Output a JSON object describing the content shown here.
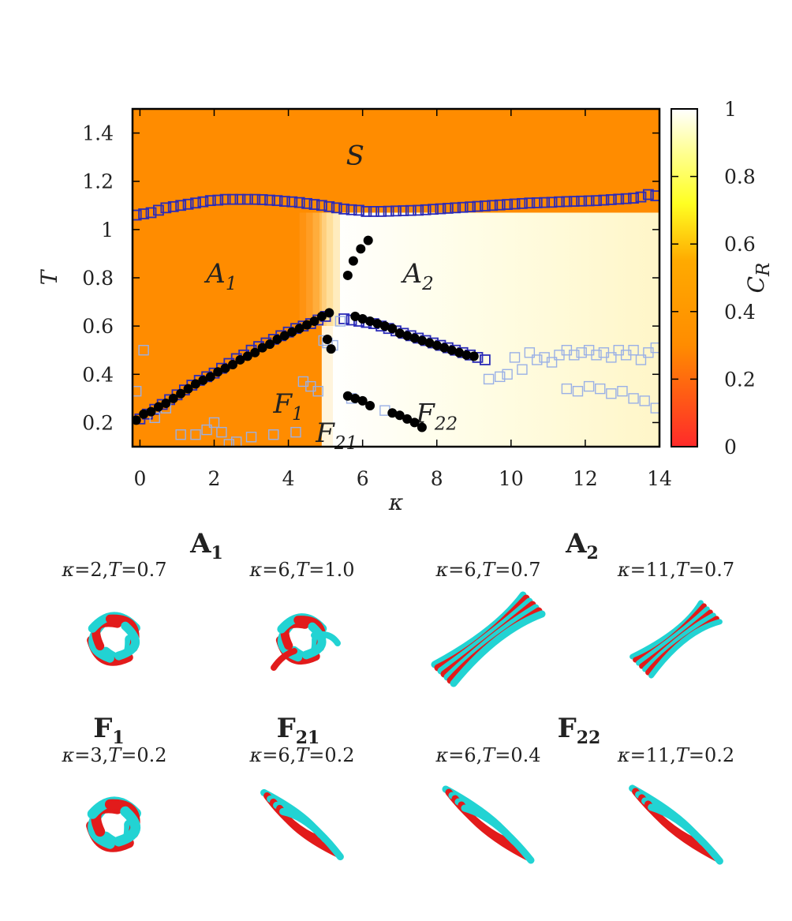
{
  "chart_data": {
    "type": "heatmap",
    "xlabel": "κ",
    "ylabel": "T",
    "xlim": [
      -0.2,
      14
    ],
    "ylim": [
      0.1,
      1.5
    ],
    "x_ticks": [
      "0",
      "2",
      "4",
      "6",
      "8",
      "10",
      "12",
      "14"
    ],
    "y_ticks": [
      "0.2",
      "0.4",
      "0.6",
      "0.8",
      "1",
      "1.2",
      "1.4"
    ],
    "colorbar": {
      "label": "C",
      "label_sub": "R",
      "range": [
        0,
        1
      ],
      "ticks": [
        "0",
        "0.2",
        "0.4",
        "0.6",
        "0.8",
        "1"
      ],
      "colors": [
        "#ff2a2a",
        "#ff8c00",
        "#ffff22",
        "#ffffff"
      ]
    },
    "regions": [
      {
        "label": "S",
        "sub": "",
        "kappa": 5.8,
        "T": 1.27
      },
      {
        "label": "A",
        "sub": "1",
        "kappa": 2.2,
        "T": 0.78
      },
      {
        "label": "A",
        "sub": "2",
        "kappa": 7.5,
        "T": 0.78
      },
      {
        "label": "F",
        "sub": "1",
        "kappa": 4.0,
        "T": 0.24
      },
      {
        "label": "F",
        "sub": "21",
        "kappa": 5.3,
        "T": 0.12
      },
      {
        "label": "F",
        "sub": "22",
        "kappa": 8.0,
        "T": 0.2
      }
    ],
    "series": [
      {
        "marker": "blue-square-outline",
        "x": [
          -0.1,
          0.1,
          0.3,
          0.5,
          0.7,
          0.9,
          1.1,
          1.3,
          1.5,
          1.7,
          1.9,
          2.1,
          2.3,
          2.5,
          2.7,
          2.9,
          3.1,
          3.3,
          3.5,
          3.7,
          3.9,
          4.1,
          4.3,
          4.5,
          4.7,
          4.9,
          5.1,
          5.3,
          5.5,
          5.7,
          5.9,
          6.1,
          6.3,
          6.5,
          6.7,
          6.9,
          7.1,
          7.3,
          7.5,
          7.7,
          7.9,
          8.1,
          8.3,
          8.5,
          8.7,
          8.9,
          9.1,
          9.3,
          9.5,
          9.7,
          9.9,
          10.1,
          10.3,
          10.5,
          10.7,
          10.9,
          11.1,
          11.3,
          11.5,
          11.7,
          11.9,
          12.1,
          12.3,
          12.5,
          12.7,
          12.9,
          13.1,
          13.3,
          13.5,
          13.7,
          13.9
        ],
        "y": [
          1.06,
          1.065,
          1.07,
          1.08,
          1.09,
          1.095,
          1.1,
          1.105,
          1.11,
          1.115,
          1.12,
          1.122,
          1.125,
          1.125,
          1.125,
          1.125,
          1.125,
          1.124,
          1.122,
          1.12,
          1.117,
          1.115,
          1.112,
          1.108,
          1.104,
          1.1,
          1.095,
          1.09,
          1.085,
          1.082,
          1.08,
          1.075,
          1.075,
          1.075,
          1.076,
          1.077,
          1.078,
          1.079,
          1.08,
          1.082,
          1.084,
          1.086,
          1.088,
          1.09,
          1.092,
          1.094,
          1.096,
          1.098,
          1.1,
          1.102,
          1.104,
          1.106,
          1.108,
          1.11,
          1.111,
          1.112,
          1.113,
          1.115,
          1.116,
          1.117,
          1.118,
          1.119,
          1.12,
          1.122,
          1.124,
          1.126,
          1.128,
          1.13,
          1.135,
          1.145,
          1.14
        ]
      },
      {
        "marker": "blue-square-outline",
        "x": [
          0.0,
          0.2,
          0.4,
          0.6,
          0.8,
          1.0,
          1.2,
          1.4,
          1.6,
          1.8,
          2.0,
          2.2,
          2.4,
          2.6,
          2.8,
          3.0,
          3.2,
          3.4,
          3.6,
          3.8,
          4.0,
          4.2,
          4.4,
          4.6,
          4.8,
          5.0,
          5.5,
          5.7,
          5.9,
          6.1,
          6.3,
          6.5,
          6.7,
          6.9,
          7.1,
          7.3,
          7.5,
          7.7,
          7.9,
          8.1,
          8.3,
          8.5,
          8.7,
          8.9,
          9.1,
          9.3
        ],
        "y": [
          0.215,
          0.235,
          0.255,
          0.275,
          0.295,
          0.315,
          0.335,
          0.355,
          0.375,
          0.39,
          0.405,
          0.425,
          0.445,
          0.465,
          0.48,
          0.5,
          0.515,
          0.53,
          0.545,
          0.56,
          0.575,
          0.59,
          0.6,
          0.61,
          0.625,
          0.64,
          0.63,
          0.625,
          0.62,
          0.615,
          0.61,
          0.6,
          0.59,
          0.58,
          0.57,
          0.56,
          0.55,
          0.54,
          0.53,
          0.52,
          0.51,
          0.5,
          0.49,
          0.48,
          0.47,
          0.46
        ]
      },
      {
        "marker": "light-square-outline",
        "x": [
          -0.1,
          0.1,
          0.4,
          0.7,
          1.1,
          1.5,
          1.8,
          2.0,
          2.2,
          2.4,
          2.6,
          3.0,
          3.6,
          4.2,
          4.4,
          4.6,
          4.8,
          4.95,
          5.05,
          5.2,
          5.4,
          5.7,
          6.6,
          9.4,
          9.7,
          9.9,
          10.1,
          10.3,
          10.5,
          10.7,
          10.9,
          11.1,
          11.3,
          11.5,
          11.7,
          11.9,
          12.1,
          12.3,
          12.5,
          12.7,
          12.9,
          13.1,
          13.3,
          13.5,
          13.7,
          13.9,
          11.5,
          11.8,
          12.1,
          12.4,
          12.7,
          13.0,
          13.3,
          13.6,
          13.9
        ],
        "y": [
          0.33,
          0.5,
          0.22,
          0.26,
          0.15,
          0.15,
          0.17,
          0.2,
          0.16,
          0.11,
          0.12,
          0.14,
          0.15,
          0.16,
          0.37,
          0.35,
          0.33,
          0.54,
          0.53,
          0.52,
          0.62,
          0.3,
          0.25,
          0.38,
          0.39,
          0.4,
          0.47,
          0.42,
          0.49,
          0.46,
          0.47,
          0.45,
          0.48,
          0.5,
          0.48,
          0.49,
          0.5,
          0.48,
          0.49,
          0.47,
          0.5,
          0.48,
          0.5,
          0.46,
          0.49,
          0.51,
          0.34,
          0.33,
          0.35,
          0.34,
          0.32,
          0.33,
          0.3,
          0.29,
          0.26
        ]
      },
      {
        "marker": "black-circle",
        "x": [
          -0.1,
          0.1,
          0.3,
          0.5,
          0.7,
          0.9,
          1.1,
          1.3,
          1.5,
          1.7,
          1.9,
          2.1,
          2.3,
          2.5,
          2.7,
          2.9,
          3.1,
          3.3,
          3.5,
          3.7,
          3.9,
          4.1,
          4.3,
          4.5,
          4.7,
          4.9,
          5.1,
          5.05,
          5.15,
          5.6,
          5.75,
          5.95,
          6.15,
          5.6,
          5.8,
          6.0,
          6.2,
          6.8,
          7.0,
          7.2,
          7.4,
          7.6,
          5.8,
          6.0,
          6.2,
          6.4,
          6.6,
          6.8,
          7.0,
          7.2,
          7.4,
          7.6,
          7.8,
          8.0,
          8.2,
          8.4,
          8.6,
          8.8,
          9.0
        ],
        "y": [
          0.21,
          0.235,
          0.245,
          0.265,
          0.28,
          0.3,
          0.32,
          0.34,
          0.36,
          0.375,
          0.39,
          0.41,
          0.425,
          0.44,
          0.46,
          0.475,
          0.49,
          0.51,
          0.525,
          0.545,
          0.56,
          0.575,
          0.59,
          0.605,
          0.62,
          0.64,
          0.655,
          0.545,
          0.505,
          0.81,
          0.87,
          0.92,
          0.955,
          0.31,
          0.3,
          0.29,
          0.27,
          0.24,
          0.23,
          0.215,
          0.2,
          0.18,
          0.64,
          0.63,
          0.62,
          0.61,
          0.6,
          0.59,
          0.57,
          0.56,
          0.55,
          0.54,
          0.53,
          0.52,
          0.51,
          0.5,
          0.49,
          0.48,
          0.475
        ]
      }
    ]
  },
  "panels": {
    "top_row": [
      {
        "title": "A",
        "sub": "1"
      },
      {
        "title": "A",
        "sub": "2"
      }
    ],
    "bottom_row": [
      {
        "title": "F",
        "sub": "1"
      },
      {
        "title": "F",
        "sub": "21"
      },
      {
        "title": "F",
        "sub": "22"
      }
    ],
    "structures": [
      {
        "k": "2",
        "t": "0.7",
        "shape": "blob-loose"
      },
      {
        "k": "6",
        "t": "1.0",
        "shape": "blob-open"
      },
      {
        "k": "6",
        "t": "0.7",
        "shape": "bundle-long"
      },
      {
        "k": "11",
        "t": "0.7",
        "shape": "bundle-thin"
      },
      {
        "k": "3",
        "t": "0.2",
        "shape": "blob-tight"
      },
      {
        "k": "6",
        "t": "0.2",
        "shape": "twist-short"
      },
      {
        "k": "6",
        "t": "0.4",
        "shape": "twist-mid"
      },
      {
        "k": "11",
        "t": "0.2",
        "shape": "twist-long"
      }
    ],
    "colors": {
      "chain_a": "#e21b1b",
      "chain_b": "#22d3d3"
    }
  }
}
